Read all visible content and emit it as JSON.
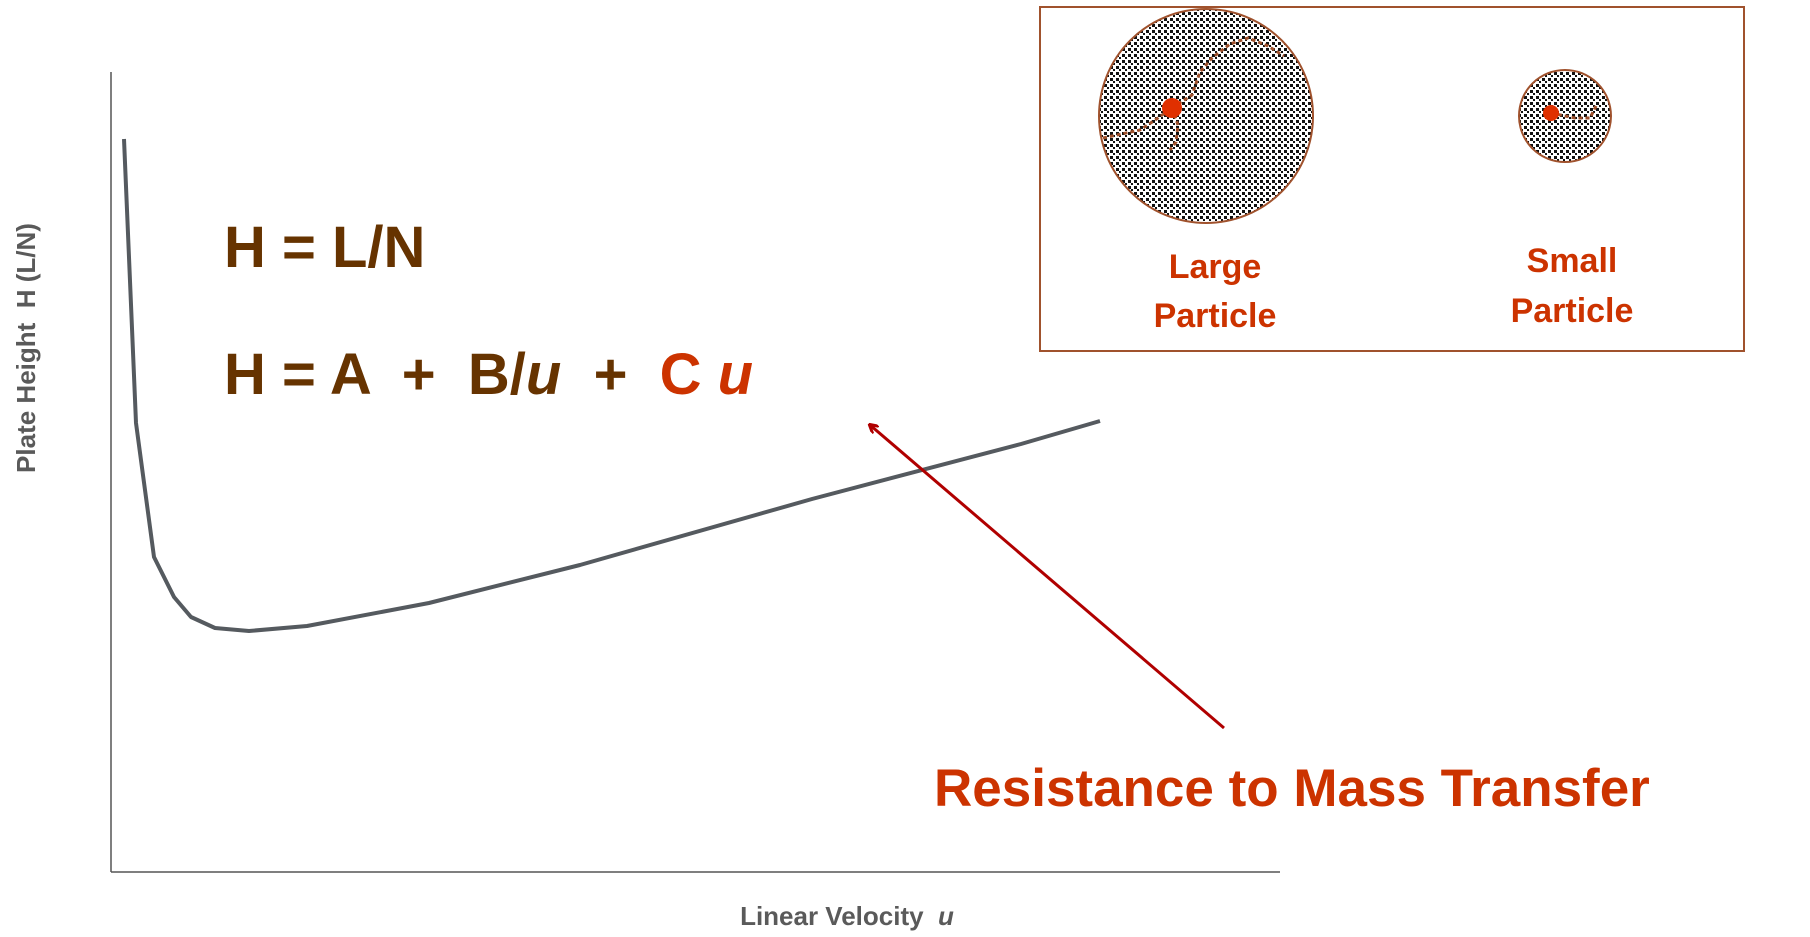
{
  "axes": {
    "y_label": "Plate Height  H (L/N)",
    "x_label": {
      "text": "Linear Velocity  ",
      "symbol": "u"
    }
  },
  "equations": [
    {
      "text": "H = L/N"
    },
    {
      "parts": [
        "H = A  +  B/",
        "u",
        "  +  ",
        "C ",
        "u"
      ]
    }
  ],
  "inset": {
    "large": [
      "Large",
      "Particle"
    ],
    "small": [
      "Small",
      "Particle"
    ]
  },
  "annotation": "Resistance to Mass Transfer"
}
